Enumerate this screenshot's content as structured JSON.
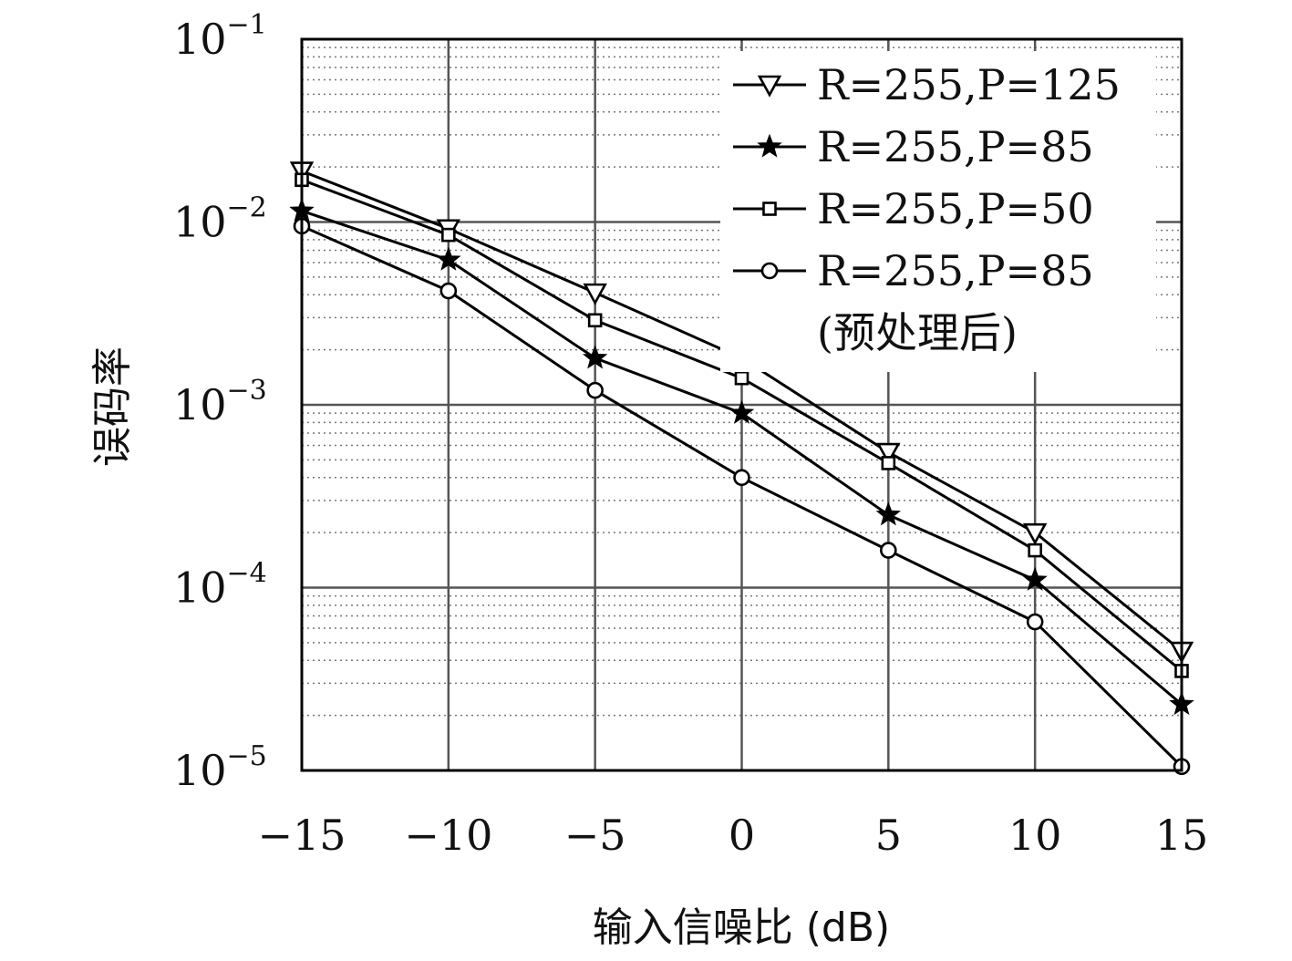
{
  "chart_data": {
    "type": "line",
    "xlabel": "输入信噪比 (dB)",
    "ylabel": "误码率",
    "x": [
      -15,
      -10,
      -5,
      0,
      5,
      10,
      15
    ],
    "xlim": [
      -15,
      15
    ],
    "ylim": [
      1e-05,
      0.1
    ],
    "yscale": "log",
    "x_ticks": [
      "−15",
      "−10",
      "−5",
      "0",
      "5",
      "10",
      "15"
    ],
    "y_ticks": [
      {
        "value": 0.1,
        "base": "10",
        "exp": "−1"
      },
      {
        "value": 0.01,
        "base": "10",
        "exp": "−2"
      },
      {
        "value": 0.001,
        "base": "10",
        "exp": "−3"
      },
      {
        "value": 0.0001,
        "base": "10",
        "exp": "−4"
      },
      {
        "value": 1e-05,
        "base": "10",
        "exp": "−5"
      }
    ],
    "grid": {
      "major": true,
      "minor_y": true
    },
    "legend_position": "top-right",
    "series": [
      {
        "name": "R=255,P=125",
        "marker": "triangle-down",
        "values": [
          0.019,
          0.0092,
          0.0041,
          0.0018,
          0.00055,
          0.0002,
          4.5e-05
        ]
      },
      {
        "name": "R=255,P=85",
        "marker": "star",
        "values": [
          0.0115,
          0.0062,
          0.0018,
          0.0009,
          0.00025,
          0.00011,
          2.3e-05
        ]
      },
      {
        "name": "R=255,P=50",
        "marker": "square",
        "values": [
          0.017,
          0.0085,
          0.0029,
          0.0014,
          0.00048,
          0.00016,
          3.5e-05
        ]
      },
      {
        "name": "R=255,P=85",
        "note": "(预处理后)",
        "marker": "circle",
        "values": [
          0.0095,
          0.0042,
          0.0012,
          0.0004,
          0.00016,
          6.5e-05,
          1.05e-05
        ]
      }
    ]
  }
}
